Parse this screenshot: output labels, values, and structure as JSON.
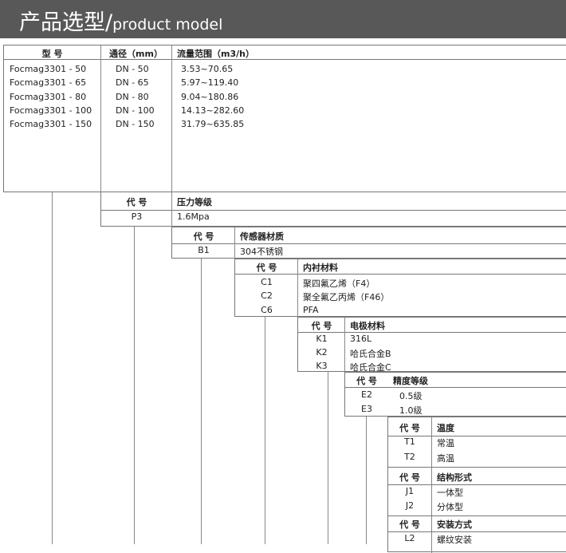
{
  "header": {
    "title_cn": "产品选型/",
    "title_en": "product model"
  },
  "model_table": {
    "headers": [
      "型 号",
      "通径（mm）",
      "流量范围（m3/h）"
    ],
    "rows": [
      [
        "Focmag3301 - 50",
        "DN - 50",
        "3.53~70.65"
      ],
      [
        "Focmag3301 - 65",
        "DN - 65",
        "5.97~119.40"
      ],
      [
        "Focmag3301 - 80",
        "DN - 80",
        "9.04~180.86"
      ],
      [
        "Focmag3301 - 100",
        "DN - 100",
        "14.13~282.60"
      ],
      [
        "Focmag3301 - 150",
        "DN - 150",
        "31.79~635.85"
      ]
    ]
  },
  "code_label": "代 号",
  "pressure": {
    "title": "压力等级",
    "rows": [
      [
        "P3",
        "1.6Mpa"
      ]
    ]
  },
  "sensor": {
    "title": "传感器材质",
    "rows": [
      [
        "B1",
        "304不锈钢"
      ]
    ]
  },
  "lining": {
    "title": "内衬材料",
    "rows": [
      [
        "C1",
        "聚四氟乙烯（F4）"
      ],
      [
        "C2",
        "聚全氟乙丙烯（F46）"
      ],
      [
        "C6",
        "PFA"
      ]
    ]
  },
  "electrode": {
    "title": "电极材料",
    "rows": [
      [
        "K1",
        "316L"
      ],
      [
        "K2",
        "哈氏合金B"
      ],
      [
        "K3",
        "哈氏合金C"
      ]
    ]
  },
  "accuracy": {
    "title": "精度等级",
    "rows": [
      [
        "E2",
        "0.5级"
      ],
      [
        "E3",
        "1.0级"
      ]
    ]
  },
  "temperature": {
    "title": "温度",
    "rows": [
      [
        "T1",
        "常温"
      ],
      [
        "T2",
        "高温"
      ]
    ]
  },
  "structure": {
    "title": "结构形式",
    "rows": [
      [
        "J1",
        "一体型"
      ],
      [
        "J2",
        "分体型"
      ]
    ]
  },
  "install": {
    "title": "安装方式",
    "rows": [
      [
        "L2",
        "螺纹安装"
      ]
    ]
  }
}
